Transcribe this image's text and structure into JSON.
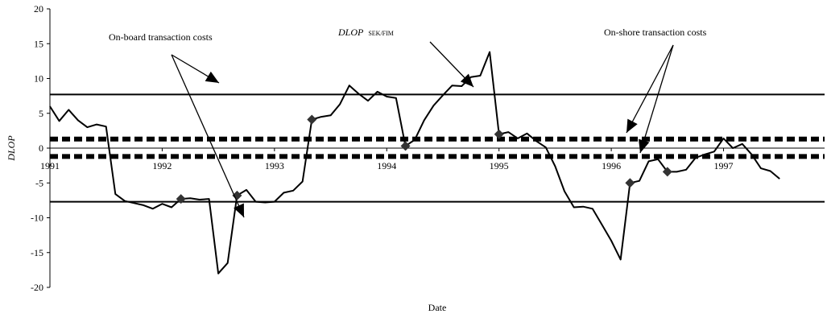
{
  "chart_data": {
    "type": "line",
    "xlabel": "Date",
    "ylabel": "DLOP",
    "xlim": [
      1991.0,
      1997.9
    ],
    "ylim": [
      -20,
      20
    ],
    "y_ticks": [
      20,
      15,
      10,
      5,
      0,
      -5,
      -10,
      -15,
      -20
    ],
    "x_tick_labels": [
      {
        "value": 1991,
        "label": "1991"
      },
      {
        "value": 1992,
        "label": "1992"
      },
      {
        "value": 1993,
        "label": "1993"
      },
      {
        "value": 1994,
        "label": "1994"
      },
      {
        "value": 1995,
        "label": "1995"
      },
      {
        "value": 1996,
        "label": "1996"
      },
      {
        "value": 1997,
        "label": "1997"
      }
    ],
    "series": [
      {
        "values": [
          [
            1991.0,
            6.0
          ],
          [
            1991.083,
            3.9
          ],
          [
            1991.167,
            5.5
          ],
          [
            1991.25,
            4.0
          ],
          [
            1991.333,
            3.0
          ],
          [
            1991.417,
            3.4
          ],
          [
            1991.5,
            3.1
          ],
          [
            1991.583,
            -6.6
          ],
          [
            1991.667,
            -7.6
          ],
          [
            1991.75,
            -7.9
          ],
          [
            1991.833,
            -8.2
          ],
          [
            1991.917,
            -8.7
          ],
          [
            1992.0,
            -8.0
          ],
          [
            1992.083,
            -8.5
          ],
          [
            1992.167,
            -7.3
          ],
          [
            1992.25,
            -7.2
          ],
          [
            1992.333,
            -7.4
          ],
          [
            1992.417,
            -7.3
          ],
          [
            1992.5,
            -18.0
          ],
          [
            1992.583,
            -16.5
          ],
          [
            1992.667,
            -6.8
          ],
          [
            1992.75,
            -6.0
          ],
          [
            1992.833,
            -7.7
          ],
          [
            1992.917,
            -7.8
          ],
          [
            1993.0,
            -7.7
          ],
          [
            1993.083,
            -6.4
          ],
          [
            1993.167,
            -6.1
          ],
          [
            1993.25,
            -4.8
          ],
          [
            1993.333,
            4.1
          ],
          [
            1993.417,
            4.5
          ],
          [
            1993.5,
            4.7
          ],
          [
            1993.583,
            6.3
          ],
          [
            1993.667,
            9.0
          ],
          [
            1993.75,
            7.8
          ],
          [
            1993.833,
            6.8
          ],
          [
            1993.917,
            8.1
          ],
          [
            1994.0,
            7.4
          ],
          [
            1994.083,
            7.2
          ],
          [
            1994.167,
            0.3
          ],
          [
            1994.25,
            1.2
          ],
          [
            1994.333,
            4.0
          ],
          [
            1994.417,
            6.1
          ],
          [
            1994.5,
            7.6
          ],
          [
            1994.583,
            9.0
          ],
          [
            1994.667,
            8.9
          ],
          [
            1994.75,
            10.2
          ],
          [
            1994.833,
            10.4
          ],
          [
            1994.917,
            13.8
          ],
          [
            1995.0,
            2.0
          ],
          [
            1995.083,
            2.3
          ],
          [
            1995.167,
            1.4
          ],
          [
            1995.25,
            2.1
          ],
          [
            1995.333,
            1.0
          ],
          [
            1995.417,
            0.1
          ],
          [
            1995.5,
            -2.6
          ],
          [
            1995.583,
            -6.2
          ],
          [
            1995.667,
            -8.5
          ],
          [
            1995.75,
            -8.4
          ],
          [
            1995.833,
            -8.7
          ],
          [
            1995.917,
            -11.0
          ],
          [
            1996.0,
            -13.3
          ],
          [
            1996.083,
            -16.0
          ],
          [
            1996.167,
            -5.0
          ],
          [
            1996.25,
            -4.7
          ],
          [
            1996.333,
            -1.9
          ],
          [
            1996.417,
            -1.6
          ],
          [
            1996.5,
            -3.4
          ],
          [
            1996.583,
            -3.4
          ],
          [
            1996.667,
            -3.1
          ],
          [
            1996.75,
            -1.4
          ],
          [
            1996.833,
            -0.9
          ],
          [
            1996.917,
            -0.5
          ],
          [
            1997.0,
            1.4
          ],
          [
            1997.083,
            0.0
          ],
          [
            1997.167,
            0.6
          ],
          [
            1997.25,
            -0.9
          ],
          [
            1997.333,
            -2.9
          ],
          [
            1997.417,
            -3.3
          ],
          [
            1997.5,
            -4.4
          ]
        ],
        "markers": [
          [
            1992.167,
            -7.3
          ],
          [
            1992.667,
            -6.8
          ],
          [
            1993.333,
            4.1
          ],
          [
            1994.167,
            0.3
          ],
          [
            1995.0,
            2.0
          ],
          [
            1996.167,
            -5.0
          ],
          [
            1996.5,
            -3.4
          ]
        ],
        "marker_shape": "diamond",
        "color": "#000000"
      }
    ],
    "reference_lines": [
      {
        "y": 7.7,
        "style": "solid"
      },
      {
        "y": -7.7,
        "style": "solid"
      },
      {
        "y": 1.3,
        "style": "dashed"
      },
      {
        "y": -1.2,
        "style": "dashed"
      }
    ],
    "grid": false,
    "annotations": [
      {
        "id": "onboard",
        "text": "On-board transaction costs",
        "sub": ""
      },
      {
        "id": "dlop",
        "text": "DLOP",
        "sub": "SEK/FIM"
      },
      {
        "id": "onshore",
        "text": "On-shore transaction costs",
        "sub": ""
      }
    ],
    "colors": {
      "line": "#000000",
      "marker": "#333333",
      "axis": "#000000"
    }
  }
}
